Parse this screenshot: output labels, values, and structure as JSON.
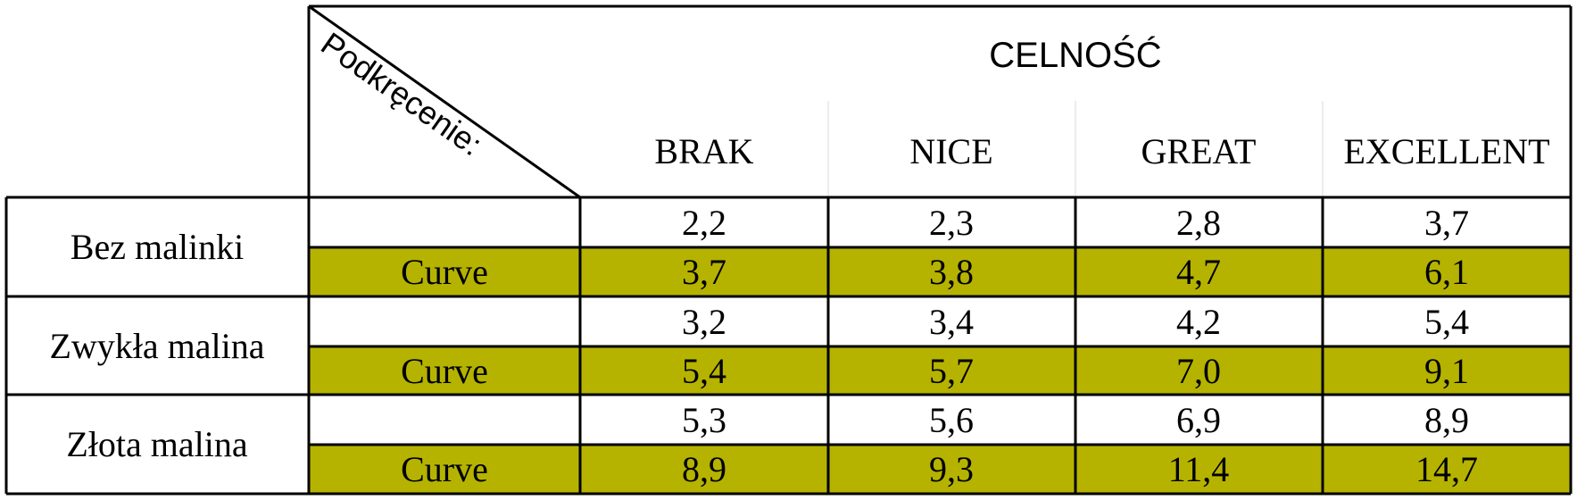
{
  "table": {
    "header_title": "CELNOŚĆ",
    "corner_label": "Podkręcenie:",
    "columns": [
      "BRAK",
      "NICE",
      "GREAT",
      "EXCELLENT"
    ],
    "highlight_color": "#b5b300",
    "groups": [
      {
        "name": "Bez malinki",
        "rows": [
          {
            "label": "",
            "values": [
              "2,2",
              "2,3",
              "2,8",
              "3,7"
            ]
          },
          {
            "label": "Curve",
            "values": [
              "3,7",
              "3,8",
              "4,7",
              "6,1"
            ]
          }
        ]
      },
      {
        "name": "Zwykła malina",
        "rows": [
          {
            "label": "",
            "values": [
              "3,2",
              "3,4",
              "4,2",
              "5,4"
            ]
          },
          {
            "label": "Curve",
            "values": [
              "5,4",
              "5,7",
              "7,0",
              "9,1"
            ]
          }
        ]
      },
      {
        "name": "Złota malina",
        "rows": [
          {
            "label": "",
            "values": [
              "5,3",
              "5,6",
              "6,9",
              "8,9"
            ]
          },
          {
            "label": "Curve",
            "values": [
              "8,9",
              "9,3",
              "11,4",
              "14,7"
            ]
          }
        ]
      }
    ]
  }
}
